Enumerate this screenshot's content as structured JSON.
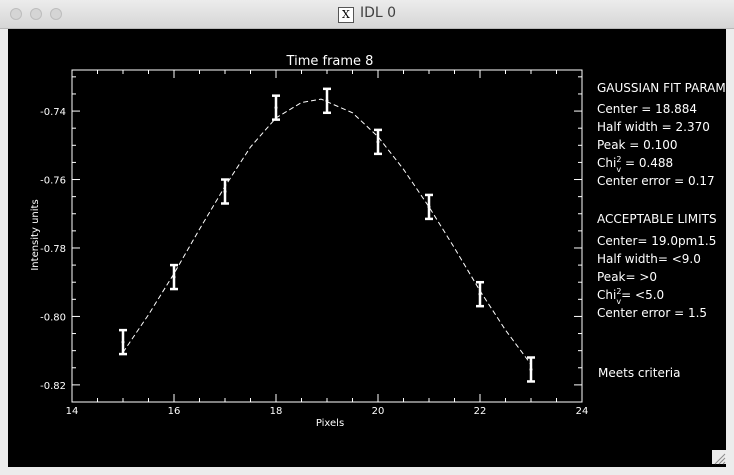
{
  "window": {
    "title": "IDL 0"
  },
  "chart_data": {
    "type": "line",
    "title": "Time frame 8",
    "xlabel": "Pixels",
    "ylabel": "Intensity units",
    "xlim": [
      14,
      24
    ],
    "ylim": [
      -0.825,
      -0.728
    ],
    "x_ticks": [
      14,
      16,
      18,
      20,
      22,
      24
    ],
    "x_tick_labels": [
      "14",
      "16",
      "18",
      "20",
      "22",
      "24"
    ],
    "y_ticks": [
      -0.74,
      -0.76,
      -0.78,
      -0.8,
      -0.82
    ],
    "y_tick_labels": [
      "-0.74",
      "-0.76",
      "-0.78",
      "-0.80",
      "-0.82"
    ],
    "grid": false,
    "series": [
      {
        "style": "error-bars",
        "x": [
          15,
          16,
          17,
          18,
          19,
          20,
          21,
          22,
          23
        ],
        "y": [
          -0.8075,
          -0.7885,
          -0.7635,
          -0.739,
          -0.737,
          -0.749,
          -0.768,
          -0.7935,
          -0.8155
        ],
        "yerr": [
          0.0035,
          0.0035,
          0.0035,
          0.0035,
          0.0035,
          0.0035,
          0.0035,
          0.0035,
          0.0035
        ]
      },
      {
        "style": "dashed-fit",
        "x": [
          15,
          15.5,
          16,
          16.5,
          17,
          17.5,
          18,
          18.5,
          18.884,
          19.5,
          20,
          20.5,
          21,
          21.5,
          22,
          22.5,
          23
        ],
        "y": [
          -0.8105,
          -0.7995,
          -0.7875,
          -0.7745,
          -0.762,
          -0.7505,
          -0.742,
          -0.7375,
          -0.7365,
          -0.7405,
          -0.7475,
          -0.757,
          -0.768,
          -0.78,
          -0.7925,
          -0.804,
          -0.814
        ]
      }
    ]
  },
  "fit_params": {
    "heading": "GAUSSIAN FIT PARAM",
    "lines": [
      {
        "text": "Center = 18.884",
        "sup": "",
        "after": ""
      },
      {
        "text": "Half width = 2.370",
        "sup": "",
        "after": ""
      },
      {
        "text": "Peak = 0.100",
        "sup": "",
        "after": ""
      },
      {
        "text": "Chi",
        "sup": "2",
        "sub": "v",
        "after": " = 0.488"
      },
      {
        "text": "Center error = 0.17",
        "sup": "",
        "after": ""
      }
    ]
  },
  "limits": {
    "heading": "ACCEPTABLE LIMITS",
    "lines": [
      {
        "text": "Center= 19.0pm1.5",
        "sup": "",
        "after": ""
      },
      {
        "text": "Half width= <9.0",
        "sup": "",
        "after": ""
      },
      {
        "text": "Peak= >0",
        "sup": "",
        "after": ""
      },
      {
        "text": "Chi",
        "sup": "2",
        "sub": "v",
        "after": "= <5.0"
      },
      {
        "text": "Center error = 1.5",
        "sup": "",
        "after": ""
      }
    ]
  },
  "status": "Meets criteria"
}
